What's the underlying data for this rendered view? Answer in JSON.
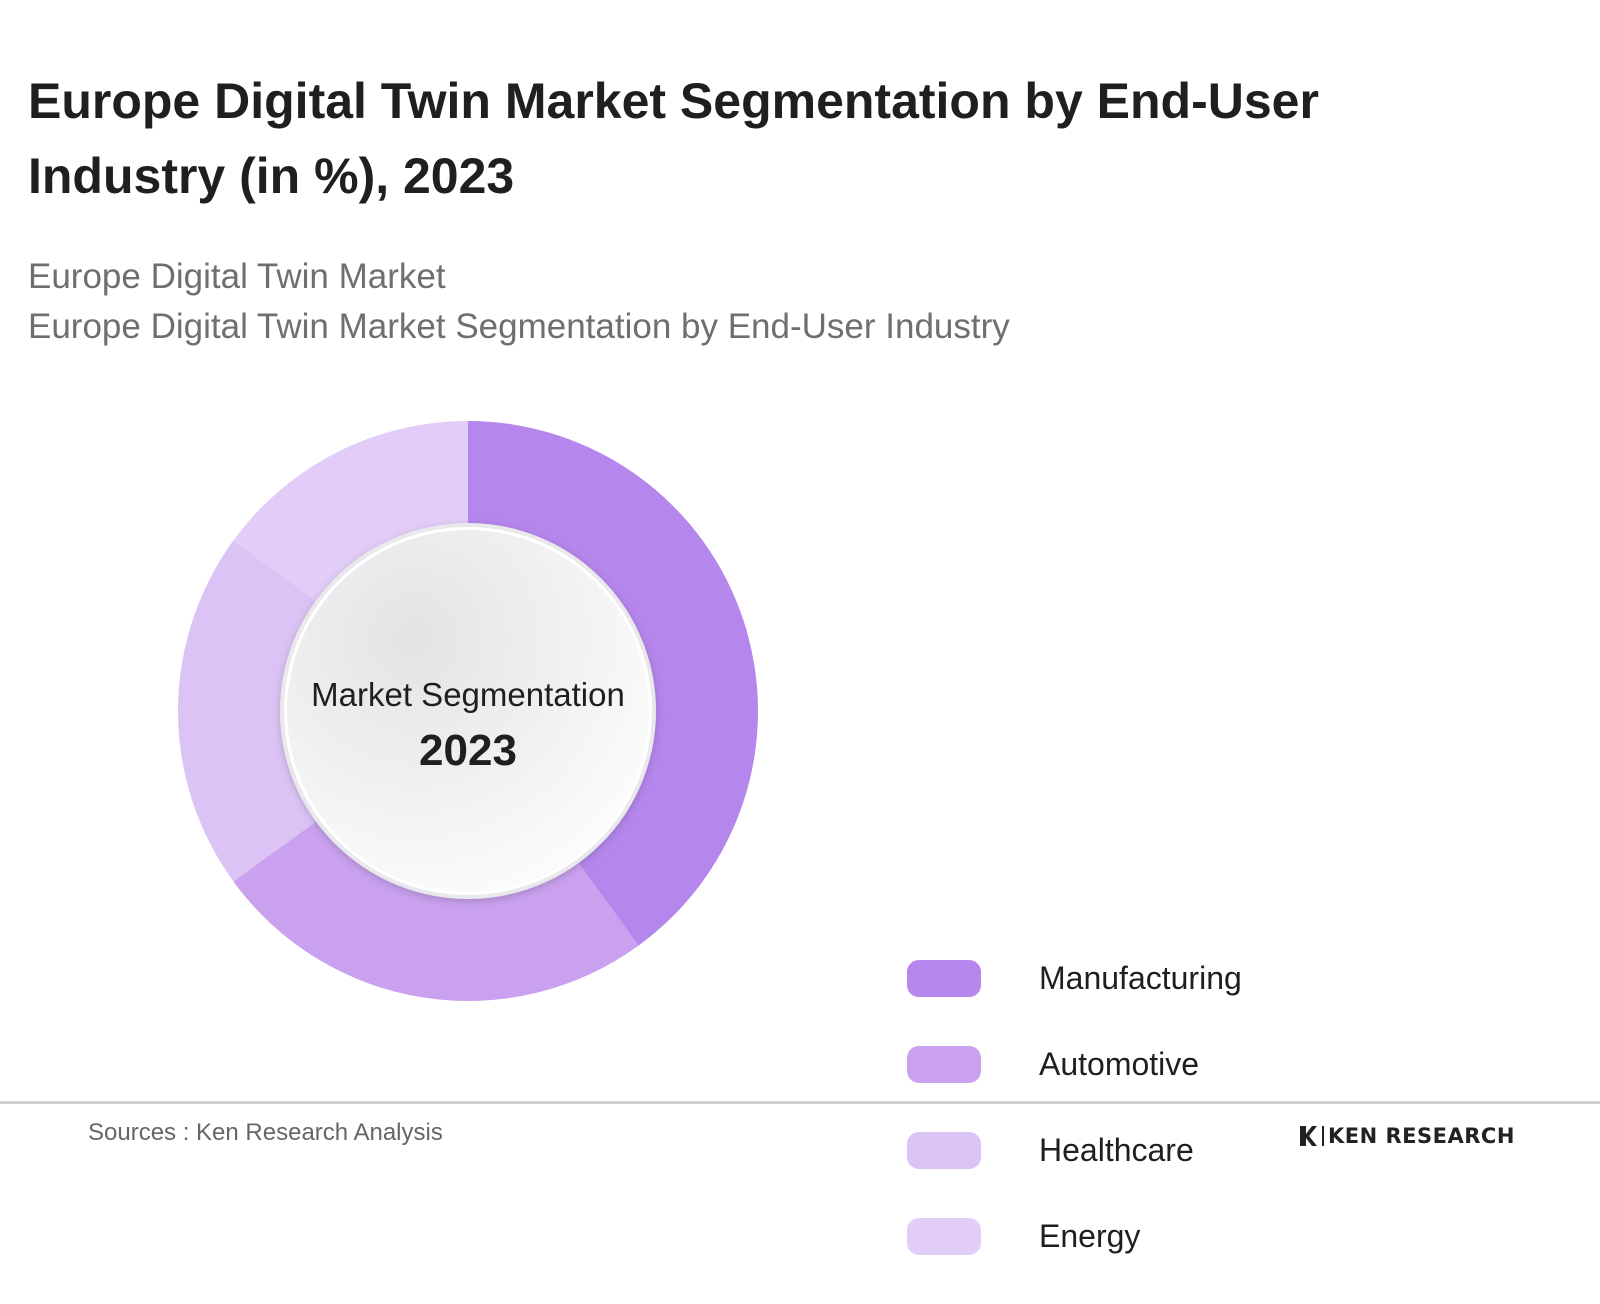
{
  "header": {
    "title": "Europe Digital Twin Market Segmentation by End-User Industry (in %), 2023",
    "subtitle_line1": "Europe Digital Twin Market",
    "subtitle_line2": "Europe Digital Twin Market Segmentation by End-User Industry"
  },
  "chart_data": {
    "type": "pie",
    "variant": "donut",
    "title": "Europe Digital Twin Market Segmentation by End-User Industry (in %), 2023",
    "center_label": "Market Segmentation",
    "center_year": "2023",
    "categories": [
      "Manufacturing",
      "Automotive",
      "Healthcare",
      "Energy"
    ],
    "values": [
      40,
      25,
      20,
      15
    ],
    "colors": [
      "#b586ec",
      "#c9a1ee",
      "#dbc3f6",
      "#e2cdf8"
    ],
    "legend_position": "right"
  },
  "footer": {
    "source": "Sources : Ken Research Analysis",
    "brand": "KEN RESEARCH"
  },
  "colors": {
    "title": "#1f1f1f",
    "subtitle": "#6f6f6f",
    "rule": "#cfcfcf"
  }
}
